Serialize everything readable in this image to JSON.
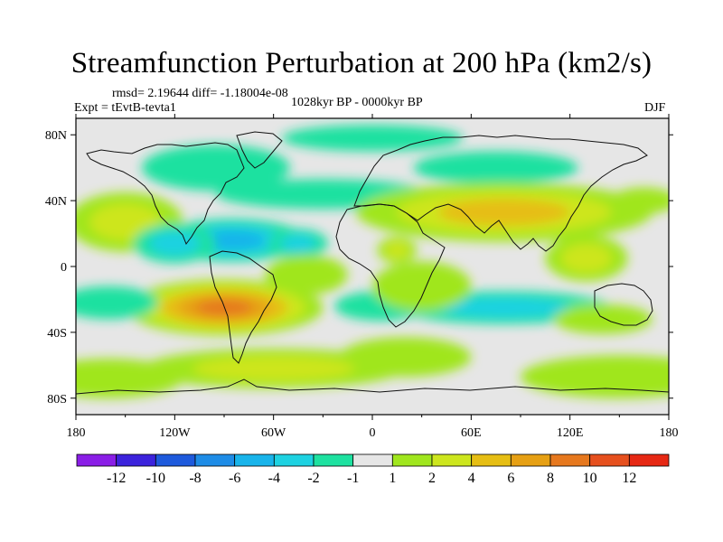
{
  "chart_data": {
    "type": "heatmap",
    "title": "Streamfunction Perturbation at 200 hPa (km2/s)",
    "stats": "rmsd= 2.19644 diff= -1.18004e-08",
    "experiment": "Expt = tEvtB-tevta1",
    "period": "1028kyr BP - 0000kyr BP",
    "season": "DJF",
    "xlim": [
      -180,
      180
    ],
    "ylim": [
      -90,
      90
    ],
    "x_ticks": [
      {
        "value": -180,
        "label": "180"
      },
      {
        "value": -120,
        "label": "120W"
      },
      {
        "value": -60,
        "label": "60W"
      },
      {
        "value": 0,
        "label": "0"
      },
      {
        "value": 60,
        "label": "60E"
      },
      {
        "value": 120,
        "label": "120E"
      },
      {
        "value": 180,
        "label": "180"
      }
    ],
    "y_ticks": [
      {
        "value": 80,
        "label": "80N"
      },
      {
        "value": 40,
        "label": "40N"
      },
      {
        "value": 0,
        "label": "0"
      },
      {
        "value": -40,
        "label": "40S"
      },
      {
        "value": -80,
        "label": "80S"
      }
    ],
    "colorbar": {
      "colors": [
        "#8a1ee6",
        "#3c23dc",
        "#1e5adc",
        "#1e8ce6",
        "#19b4ea",
        "#1ed2e1",
        "#1ee1a0",
        "#e6e6e6",
        "#a0e61e",
        "#cde61e",
        "#e6be14",
        "#e6a014",
        "#e6781e",
        "#e6501e",
        "#e62814"
      ],
      "labels": [
        "-12",
        "-10",
        "-8",
        "-6",
        "-4",
        "-2",
        "-1",
        "1",
        "2",
        "4",
        "6",
        "8",
        "10",
        "12"
      ]
    },
    "anomalies": [
      {
        "lon": 0,
        "lat": 78,
        "rx": 55,
        "ry": 8,
        "value": -1.5
      },
      {
        "lon": -95,
        "lat": 60,
        "rx": 45,
        "ry": 14,
        "value": -1.5
      },
      {
        "lon": -30,
        "lat": 44,
        "rx": 65,
        "ry": 9,
        "value": -1.2
      },
      {
        "lon": 75,
        "lat": 60,
        "rx": 50,
        "ry": 10,
        "value": -1.3
      },
      {
        "lon": -150,
        "lat": 27,
        "rx": 35,
        "ry": 18,
        "value": 3.0
      },
      {
        "lon": -85,
        "lat": 16,
        "rx": 45,
        "ry": 13,
        "value": -4.5
      },
      {
        "lon": -120,
        "lat": 14,
        "rx": 25,
        "ry": 12,
        "value": -3.5
      },
      {
        "lon": -45,
        "lat": 14,
        "rx": 18,
        "ry": 9,
        "value": -2.5
      },
      {
        "lon": 15,
        "lat": 10,
        "rx": 12,
        "ry": 8,
        "value": 2.0
      },
      {
        "lon": 80,
        "lat": 33,
        "rx": 90,
        "ry": 18,
        "value": 5.5
      },
      {
        "lon": 130,
        "lat": 5,
        "rx": 25,
        "ry": 14,
        "value": 2.0
      },
      {
        "lon": 165,
        "lat": 40,
        "rx": 20,
        "ry": 8,
        "value": 1.5
      },
      {
        "lon": -90,
        "lat": -25,
        "rx": 60,
        "ry": 17,
        "value": 8.5
      },
      {
        "lon": -160,
        "lat": -22,
        "rx": 30,
        "ry": 10,
        "value": -1.5
      },
      {
        "lon": 80,
        "lat": -25,
        "rx": 65,
        "ry": 10,
        "value": -2.5
      },
      {
        "lon": 5,
        "lat": -24,
        "rx": 28,
        "ry": 9,
        "value": -1.5
      },
      {
        "lon": -40,
        "lat": -5,
        "rx": 25,
        "ry": 12,
        "value": 1.5
      },
      {
        "lon": 30,
        "lat": -12,
        "rx": 30,
        "ry": 15,
        "value": 1.5
      },
      {
        "lon": 20,
        "lat": -55,
        "rx": 40,
        "ry": 12,
        "value": 1.5
      },
      {
        "lon": -60,
        "lat": -62,
        "rx": 80,
        "ry": 12,
        "value": 2.0
      },
      {
        "lon": 150,
        "lat": -67,
        "rx": 60,
        "ry": 13,
        "value": 1.5
      },
      {
        "lon": -160,
        "lat": -68,
        "rx": 45,
        "ry": 12,
        "value": 1.3
      },
      {
        "lon": 140,
        "lat": -32,
        "rx": 30,
        "ry": 9,
        "value": 1.5
      }
    ]
  }
}
